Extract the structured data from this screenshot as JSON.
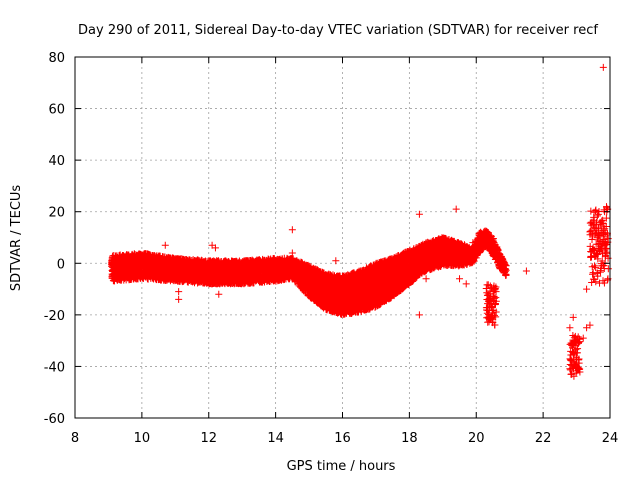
{
  "chart_data": {
    "type": "scatter",
    "title": "Day 290 of 2011, Sidereal Day-to-day VTEC variation (SDTVAR) for receiver recf",
    "xlabel": "GPS time / hours",
    "ylabel": "SDTVAR / TECUs",
    "xlim": [
      8,
      24
    ],
    "ylim": [
      -60,
      80
    ],
    "xticks": [
      8,
      10,
      12,
      14,
      16,
      18,
      20,
      22,
      24
    ],
    "yticks": [
      -60,
      -40,
      -20,
      0,
      20,
      40,
      60,
      80
    ],
    "xtick_labels": [
      "8",
      "10",
      "12",
      "14",
      "16",
      "18",
      "20",
      "22",
      "24"
    ],
    "ytick_labels": [
      "-60",
      "-40",
      "-20",
      "0",
      "20",
      "40",
      "60",
      "80"
    ],
    "grid": true,
    "marker": "+",
    "series": [
      {
        "name": "SDTVAR",
        "color": "#ff0000",
        "band": [
          {
            "x": 9.1,
            "lo": -7,
            "hi": 3
          },
          {
            "x": 10.0,
            "lo": -6,
            "hi": 4
          },
          {
            "x": 11.0,
            "lo": -7,
            "hi": 2
          },
          {
            "x": 12.0,
            "lo": -8,
            "hi": 1
          },
          {
            "x": 13.0,
            "lo": -8,
            "hi": 1
          },
          {
            "x": 14.0,
            "lo": -7,
            "hi": 2
          },
          {
            "x": 14.5,
            "lo": -6,
            "hi": 2
          },
          {
            "x": 15.0,
            "lo": -13,
            "hi": -1
          },
          {
            "x": 15.5,
            "lo": -18,
            "hi": -4
          },
          {
            "x": 16.0,
            "lo": -20,
            "hi": -5
          },
          {
            "x": 16.5,
            "lo": -19,
            "hi": -3
          },
          {
            "x": 17.0,
            "lo": -17,
            "hi": 0
          },
          {
            "x": 17.5,
            "lo": -13,
            "hi": 2
          },
          {
            "x": 18.0,
            "lo": -8,
            "hi": 5
          },
          {
            "x": 18.5,
            "lo": -3,
            "hi": 8
          },
          {
            "x": 19.0,
            "lo": -1,
            "hi": 10
          },
          {
            "x": 19.5,
            "lo": -1,
            "hi": 8
          },
          {
            "x": 19.9,
            "lo": 0,
            "hi": 6
          },
          {
            "x": 20.1,
            "lo": 4,
            "hi": 12
          },
          {
            "x": 20.3,
            "lo": 7,
            "hi": 13
          },
          {
            "x": 20.5,
            "lo": 3,
            "hi": 10
          },
          {
            "x": 20.7,
            "lo": -2,
            "hi": 4
          },
          {
            "x": 20.9,
            "lo": -5,
            "hi": -1
          }
        ],
        "segments": [
          {
            "x0": 20.3,
            "x1": 20.6,
            "lo": -24,
            "hi": -8
          },
          {
            "x0": 22.8,
            "x1": 23.1,
            "lo": -44,
            "hi": -28
          },
          {
            "x0": 23.4,
            "x1": 23.95,
            "lo": -8,
            "hi": 22
          }
        ],
        "outliers": [
          {
            "x": 10.7,
            "y": 7
          },
          {
            "x": 11.1,
            "y": -11
          },
          {
            "x": 11.1,
            "y": -14
          },
          {
            "x": 12.1,
            "y": 7
          },
          {
            "x": 12.2,
            "y": 6
          },
          {
            "x": 12.3,
            "y": -12
          },
          {
            "x": 14.5,
            "y": 13
          },
          {
            "x": 14.5,
            "y": 4
          },
          {
            "x": 15.8,
            "y": 1
          },
          {
            "x": 18.1,
            "y": -7
          },
          {
            "x": 18.3,
            "y": 19
          },
          {
            "x": 18.3,
            "y": -20
          },
          {
            "x": 18.5,
            "y": -6
          },
          {
            "x": 19.4,
            "y": 21
          },
          {
            "x": 19.5,
            "y": -6
          },
          {
            "x": 19.7,
            "y": -8
          },
          {
            "x": 19.9,
            "y": 8
          },
          {
            "x": 21.5,
            "y": -3
          },
          {
            "x": 22.9,
            "y": -21
          },
          {
            "x": 22.8,
            "y": -25
          },
          {
            "x": 23.2,
            "y": -29
          },
          {
            "x": 23.3,
            "y": -10
          },
          {
            "x": 23.3,
            "y": -25
          },
          {
            "x": 23.4,
            "y": -24
          },
          {
            "x": 23.8,
            "y": 76
          }
        ]
      }
    ]
  }
}
